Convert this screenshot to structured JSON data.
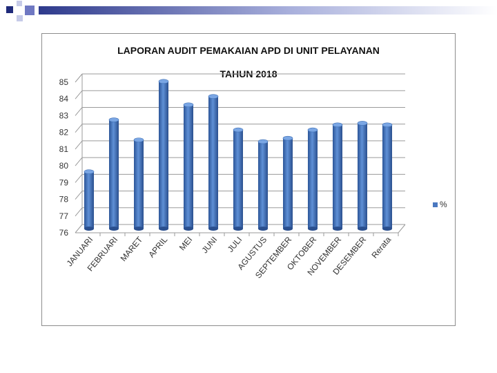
{
  "slide": {
    "decor_colors": [
      "#1f2a7a",
      "#6f78c2",
      "#c6cbe8"
    ]
  },
  "chart_data": {
    "type": "bar",
    "title": "LAPORAN AUDIT PEMAKAIAN APD DI UNIT PELAYANAN",
    "subtitle": "TAHUN 2018",
    "xlabel": "",
    "ylabel": "",
    "categories": [
      "JANUARI",
      "FEBRUARI",
      "MARET",
      "APRIL",
      "MEI",
      "JUNI",
      "JULI",
      "AGUSTUS",
      "SEPTEMBER",
      "OKTOBER",
      "NOVEMBER",
      "DESEMBER",
      "Rerata"
    ],
    "series": [
      {
        "name": "%",
        "color": "#4a78c0",
        "values": [
          79.4,
          82.5,
          81.3,
          84.8,
          83.4,
          83.9,
          81.9,
          81.2,
          81.4,
          81.9,
          82.2,
          82.3,
          82.2
        ]
      }
    ],
    "ylim": [
      76,
      85
    ],
    "yticks": [
      "76",
      "77",
      "78",
      "79",
      "80",
      "81",
      "82",
      "83",
      "84",
      "85"
    ],
    "grid": true,
    "legend": "right",
    "style": "3d-cylinder"
  }
}
